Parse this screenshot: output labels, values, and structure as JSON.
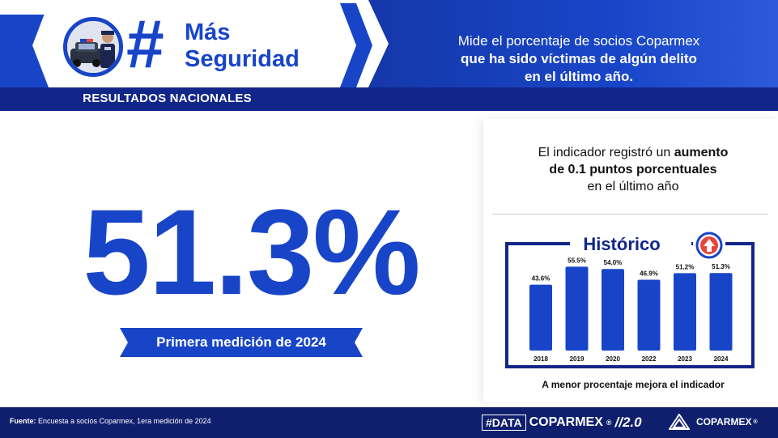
{
  "header": {
    "hash_symbol": "#",
    "title_line1": "Más",
    "title_line2": "Seguridad",
    "badge": "RESULTADOS NACIONALES",
    "description_line1": "Mide el porcentaje de socios Coparmex",
    "description_line2": "que ha sido víctimas de algún delito",
    "description_line3": "en el último año.",
    "police_icon": "police-car-officer-icon"
  },
  "main": {
    "big_value": "51.3%",
    "ribbon_label": "Primera medición de 2024"
  },
  "indicator": {
    "text_pre": "El indicador registró un ",
    "text_bold1": "aumento",
    "text_bold2": "de 0.1 puntos porcentuales",
    "text_post": "en el último año"
  },
  "chart_data": {
    "type": "bar",
    "title": "Histórico",
    "categories": [
      "2018",
      "2019",
      "2020",
      "2022",
      "2023",
      "2024"
    ],
    "values": [
      43.6,
      55.5,
      54.0,
      46.9,
      51.2,
      51.3
    ],
    "value_labels": [
      "43.6%",
      "55.5%",
      "54.0%",
      "46.9%",
      "51.2%",
      "51.3%"
    ],
    "ylim": [
      0,
      60
    ],
    "grid": false,
    "bar_color": "#1845c8",
    "trend_icon": "up-arrow-icon",
    "trend_color": "#e8453c"
  },
  "footnote": "A menor procentaje mejora el indicador",
  "footer": {
    "source_label": "Fuente:",
    "source_text": " Encuesta a socios Coparmex, 1era medición de 2024",
    "data_tag": "#DATA",
    "data_word": "COPARMEX",
    "data_reg": "®",
    "data_version": "//2.0",
    "brand": "COPARMEX",
    "brand_reg": "®"
  },
  "colors": {
    "primary": "#1845c8",
    "dark": "#12268a",
    "footer": "#0f1f6e"
  }
}
